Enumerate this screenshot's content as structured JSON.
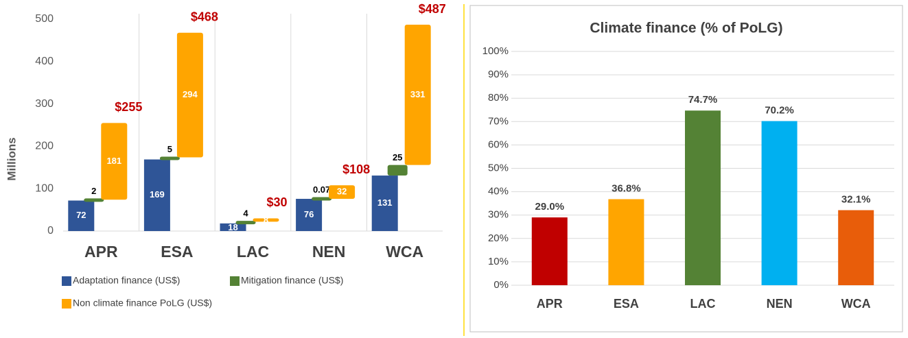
{
  "chart_data": [
    {
      "type": "stacked_bar",
      "y_axis_label": "Millions",
      "categories": [
        "APR",
        "ESA",
        "LAC",
        "NEN",
        "WCA"
      ],
      "series": [
        {
          "name": "Adaptation finance (US$)",
          "color": "#2f5597",
          "values": [
            72,
            169,
            18,
            76,
            131
          ]
        },
        {
          "name": "Mitigation finance (US$)",
          "color": "#548235",
          "values": [
            2,
            5,
            4,
            0.07,
            25
          ]
        },
        {
          "name": "Non climate finance PoLG (US$)",
          "color": "#ffa500",
          "values": [
            181,
            294,
            8,
            32,
            331
          ]
        }
      ],
      "totals": [
        255,
        468,
        30,
        108,
        487
      ],
      "total_labels": [
        "$255",
        "$468",
        "$30",
        "$108",
        "$487"
      ],
      "total_color": "#c00000",
      "ylim": [
        0,
        500
      ],
      "yticks": [
        0,
        100,
        200,
        300,
        400,
        500
      ],
      "grid": true
    },
    {
      "type": "bar",
      "title": "Climate finance (% of PoLG)",
      "categories": [
        "APR",
        "ESA",
        "LAC",
        "NEN",
        "WCA"
      ],
      "values": [
        29.0,
        36.8,
        74.7,
        70.2,
        32.1
      ],
      "value_labels": [
        "29.0%",
        "36.8%",
        "74.7%",
        "70.2%",
        "32.1%"
      ],
      "colors": [
        "#c00000",
        "#ffa500",
        "#548235",
        "#00b0f0",
        "#e85d0a"
      ],
      "ylim": [
        0,
        100
      ],
      "yticks": [
        {
          "value": 0,
          "label": "0%"
        },
        {
          "value": 10,
          "label": "10%"
        },
        {
          "value": 20,
          "label": "20%"
        },
        {
          "value": 30,
          "label": "30%"
        },
        {
          "value": 40,
          "label": "40%"
        },
        {
          "value": 50,
          "label": "50%"
        },
        {
          "value": 60,
          "label": "60%"
        },
        {
          "value": 70,
          "label": "70%"
        },
        {
          "value": 80,
          "label": "80%"
        },
        {
          "value": 90,
          "label": "90%"
        },
        {
          "value": 100,
          "label": "100%"
        }
      ],
      "grid": true
    }
  ]
}
